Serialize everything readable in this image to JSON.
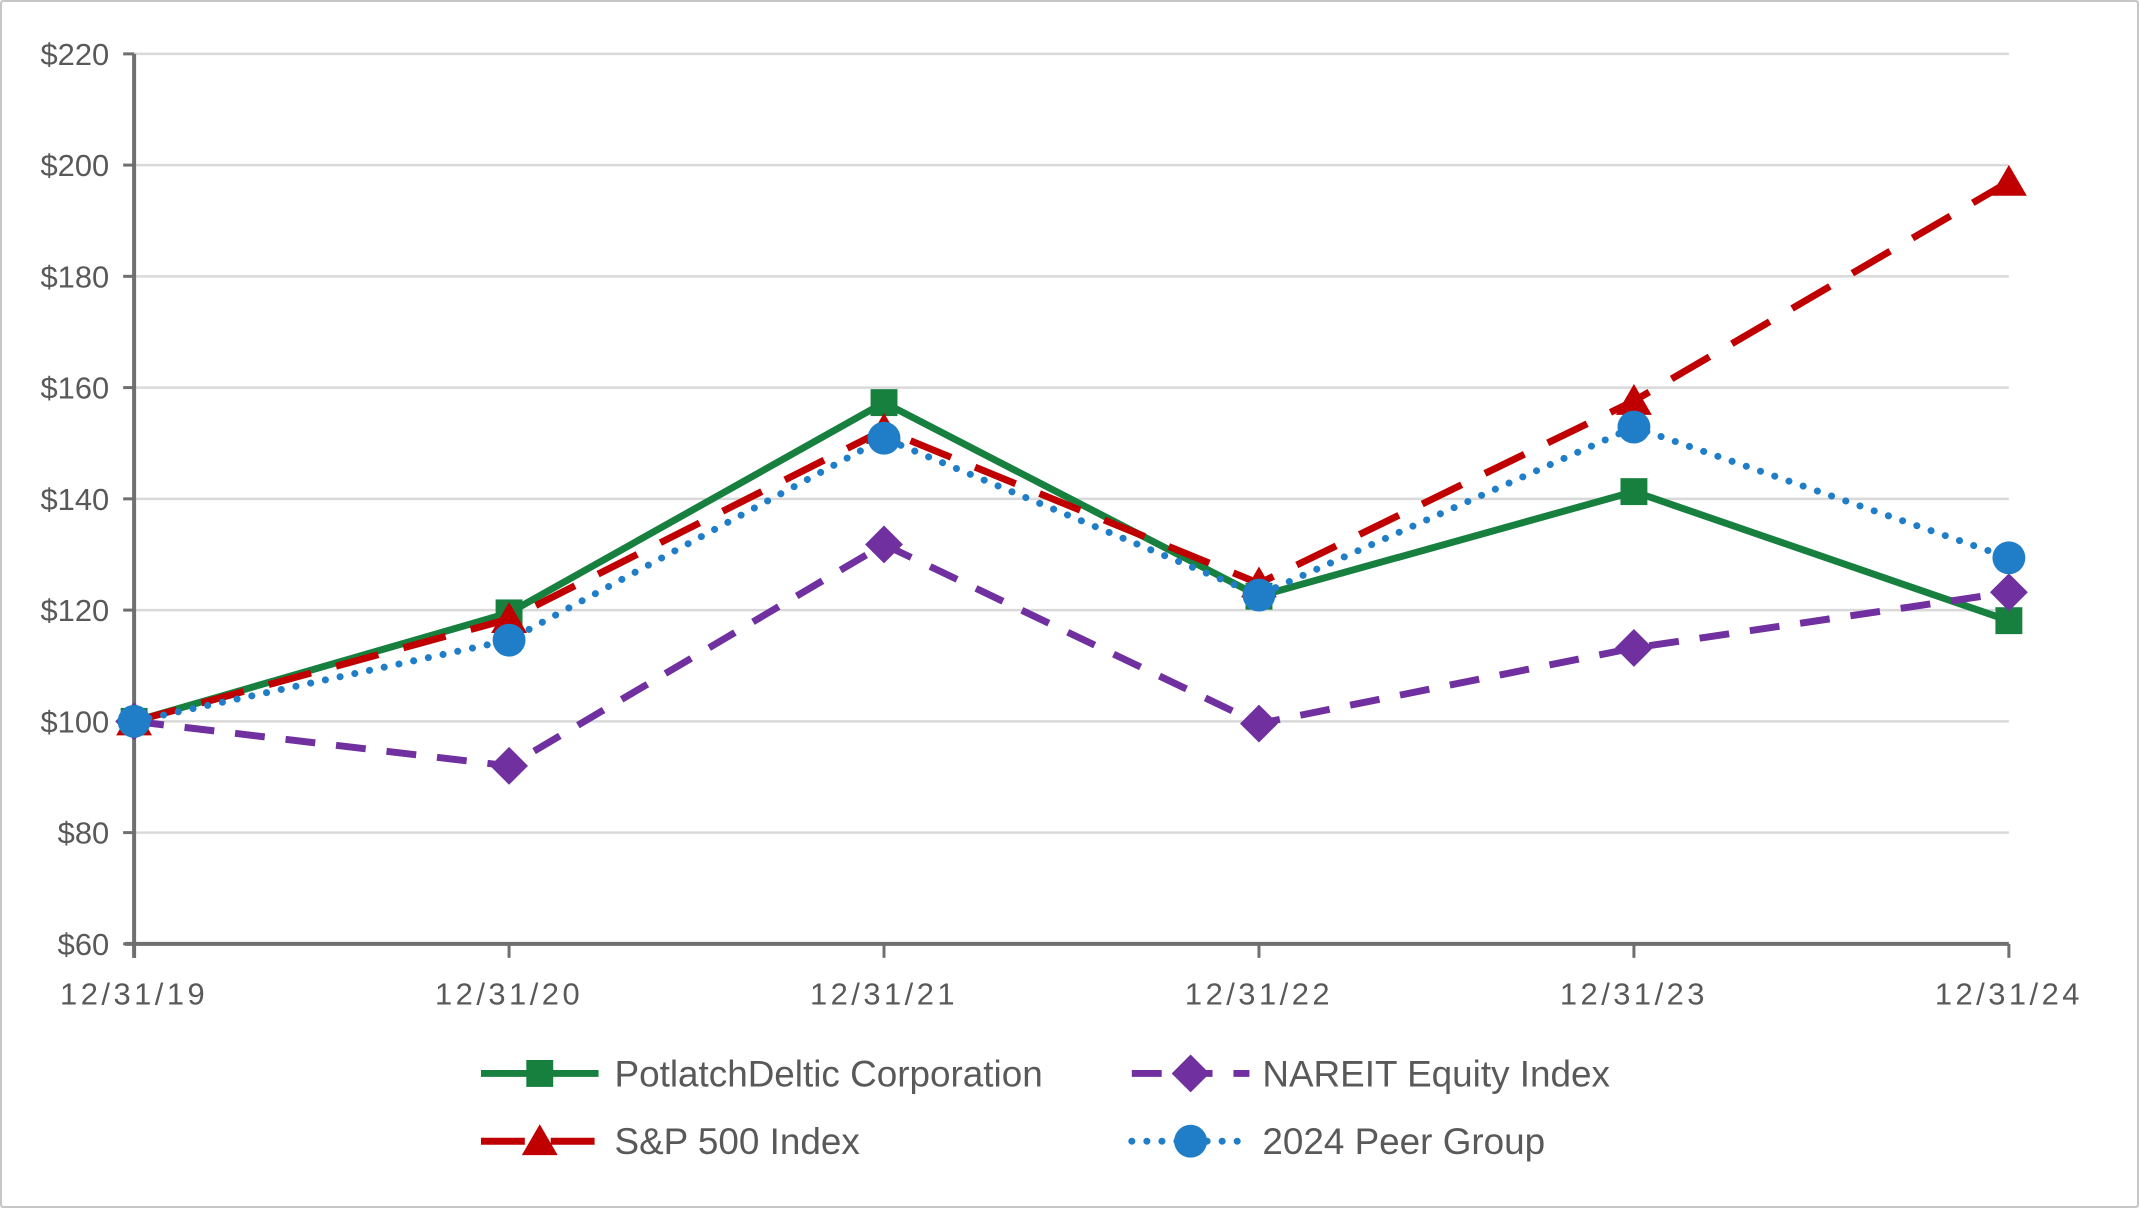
{
  "chart_data": {
    "type": "line",
    "title": "",
    "xlabel": "",
    "ylabel": "",
    "categories": [
      "12/31/19",
      "12/31/20",
      "12/31/21",
      "12/31/22",
      "12/31/23",
      "12/31/24"
    ],
    "y_ticks": [
      "$220",
      "$200",
      "$180",
      "$160",
      "$140",
      "$120",
      "$100",
      "$80",
      "$60"
    ],
    "ylim": [
      60,
      220
    ],
    "y_tick_step": 20,
    "y_tick_prefix": "$",
    "grid": true,
    "legend_position": "bottom",
    "series": [
      {
        "name": "PotlatchDeltic Corporation",
        "color": "#17803F",
        "line_style": "solid",
        "marker": "square",
        "values": [
          100,
          119.5,
          157.3,
          122.5,
          141.3,
          118.1
        ]
      },
      {
        "name": "NAREIT Equity Index",
        "color": "#7030A0",
        "line_style": "dashed",
        "marker": "diamond",
        "values": [
          100,
          92.0,
          131.8,
          99.6,
          113.2,
          123.2
        ]
      },
      {
        "name": "S&P 500 Index",
        "color": "#C00000",
        "line_style": "long-dash",
        "marker": "triangle",
        "values": [
          100,
          118.4,
          152.4,
          124.8,
          157.6,
          197.0
        ]
      },
      {
        "name": "2024 Peer Group",
        "color": "#1F7EC7",
        "line_style": "dotted",
        "marker": "circle",
        "values": [
          100,
          114.6,
          150.9,
          122.7,
          152.9,
          129.4
        ]
      }
    ]
  },
  "colors": {
    "gridline": "#D9D9D9",
    "axis": "#6F6F6F",
    "tick_label": "#595959",
    "legend_text": "#595959",
    "background": "#FFFFFF"
  }
}
